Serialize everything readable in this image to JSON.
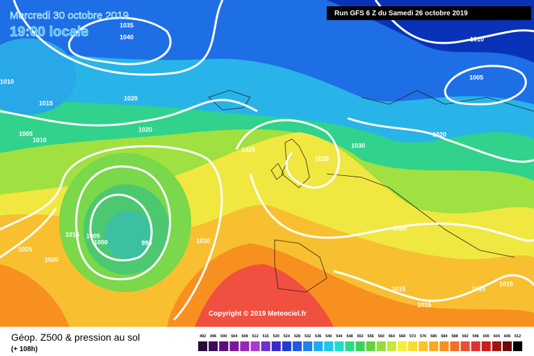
{
  "header": {
    "date": "Mercredi 30 octobre 2019",
    "time": "19:00 locale",
    "run": "Run GFS 6 Z du Samedi 26 octobre 2019"
  },
  "copyright": "Copyright © 2019 Meteociel.fr",
  "footer": {
    "title": "Géop. Z500 & pression au sol",
    "lead": "(+ 108h)"
  },
  "isobar_labels": [
    1035,
    1040,
    1010,
    1015,
    1020,
    1020,
    1005,
    1010,
    1025,
    1035,
    1030,
    1010,
    1005,
    1020,
    1015,
    1005,
    1000,
    990,
    1010,
    1025,
    1020,
    1020,
    1015,
    1015,
    1015,
    1015
  ],
  "legend": {
    "ticks": [
      492,
      496,
      500,
      504,
      508,
      512,
      516,
      520,
      524,
      528,
      532,
      536,
      540,
      544,
      548,
      552,
      556,
      560,
      564,
      568,
      572,
      576,
      580,
      584,
      588,
      592,
      596,
      600,
      604,
      608,
      612
    ],
    "colors": [
      "#2a0a3a",
      "#3c0c5a",
      "#5a107a",
      "#7a1a9a",
      "#9628b4",
      "#a83cc8",
      "#6e32c8",
      "#3c28c8",
      "#1e3cd2",
      "#1e5ae6",
      "#1e82f0",
      "#1eaaf0",
      "#1ec8e6",
      "#1edcc8",
      "#28dc8c",
      "#3cd25a",
      "#64d23c",
      "#96dc3c",
      "#c8e63c",
      "#f0f03c",
      "#f8dc32",
      "#f8c428",
      "#f8aa1e",
      "#f89020",
      "#f07028",
      "#e84e32",
      "#dc3232",
      "#c81e1e",
      "#a01414",
      "#6e0a0a",
      "#000000"
    ]
  }
}
